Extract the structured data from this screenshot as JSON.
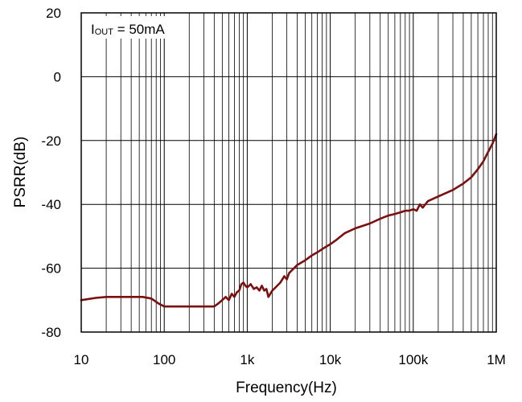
{
  "chart_data": {
    "type": "line",
    "title": "",
    "xlabel": "Frequency(Hz)",
    "ylabel": "PSRR(dB)",
    "x_scale": "log",
    "xlim": [
      10,
      1000000
    ],
    "ylim": [
      -80,
      20
    ],
    "grid": true,
    "x_ticks": [
      {
        "value": 10,
        "label": "10"
      },
      {
        "value": 100,
        "label": "100"
      },
      {
        "value": 1000,
        "label": "1k"
      },
      {
        "value": 10000,
        "label": "10k"
      },
      {
        "value": 100000,
        "label": "100k"
      },
      {
        "value": 1000000,
        "label": "1M"
      }
    ],
    "y_ticks": [
      {
        "value": 20,
        "label": "20"
      },
      {
        "value": 0,
        "label": "0"
      },
      {
        "value": -20,
        "label": "-20"
      },
      {
        "value": -40,
        "label": "-40"
      },
      {
        "value": -60,
        "label": "-60"
      },
      {
        "value": -80,
        "label": "-80"
      }
    ],
    "annotation": {
      "prefix": "I",
      "subscript": "OUT",
      "suffix": " = 50mA"
    },
    "series": [
      {
        "color": "#7b1010",
        "x": [
          10,
          15,
          20,
          30,
          40,
          55,
          70,
          85,
          100,
          150,
          200,
          300,
          400,
          450,
          500,
          550,
          600,
          650,
          700,
          750,
          800,
          850,
          900,
          950,
          1000,
          1100,
          1200,
          1300,
          1400,
          1500,
          1600,
          1700,
          1800,
          2000,
          2200,
          2500,
          2800,
          3000,
          3200,
          3500,
          4000,
          5000,
          6000,
          7000,
          8000,
          10000,
          12000,
          15000,
          20000,
          30000,
          40000,
          50000,
          60000,
          70000,
          80000,
          90000,
          100000,
          110000,
          120000,
          130000,
          150000,
          200000,
          300000,
          400000,
          500000,
          600000,
          700000,
          800000,
          900000,
          1000000
        ],
        "values": [
          -70,
          -69.3,
          -69,
          -69,
          -69,
          -69,
          -69.5,
          -71,
          -72,
          -72,
          -72,
          -72,
          -72,
          -71,
          -70,
          -69,
          -70,
          -68,
          -69,
          -67.5,
          -67,
          -65,
          -64.5,
          -65.5,
          -66,
          -65,
          -66.5,
          -66,
          -67,
          -65.5,
          -67,
          -66.5,
          -69,
          -67,
          -66,
          -64.5,
          -62.5,
          -63.5,
          -61.5,
          -60.5,
          -59,
          -57.5,
          -56,
          -55,
          -54,
          -52.5,
          -51,
          -49,
          -47.5,
          -46,
          -44.5,
          -43.5,
          -43,
          -42.5,
          -42,
          -42,
          -41.5,
          -42,
          -40,
          -41,
          -39,
          -37.5,
          -35.5,
          -33.5,
          -31.5,
          -29,
          -26.5,
          -23.5,
          -21,
          -18
        ]
      }
    ]
  }
}
